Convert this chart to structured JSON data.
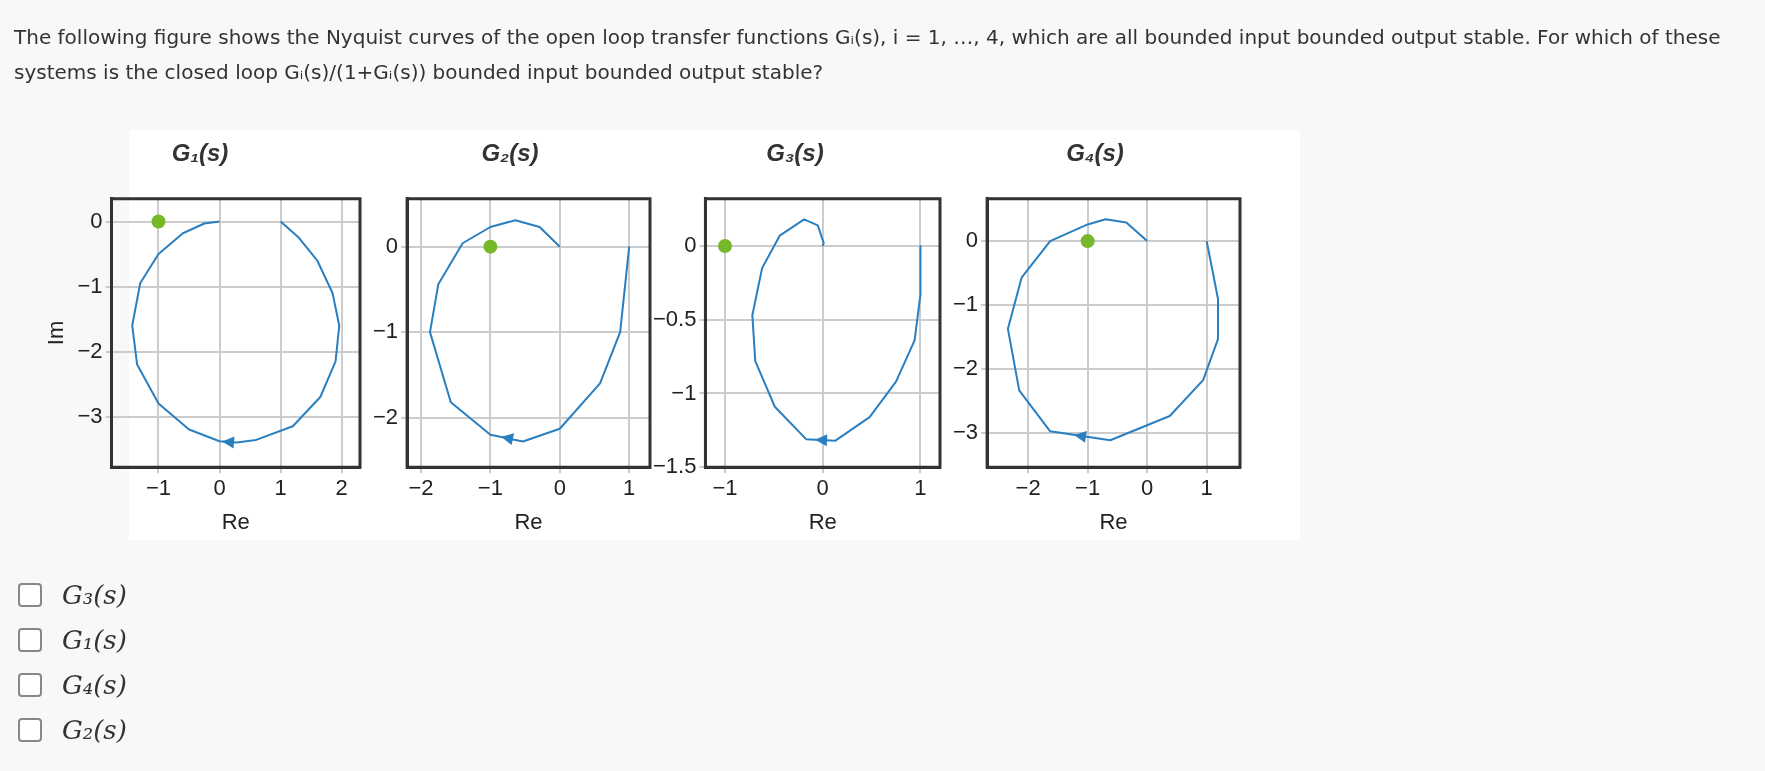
{
  "chart_data": [
    {
      "type": "other",
      "annotations": [
        "The following figure shows the Nyquist curves of the open loop transfer functions Gᵢ(s), i = 1, …, 4, which are all bounded input bounded output stable. For which of these systems is the closed loop Gᵢ(s)/(1+Gᵢ(s)) bounded input bounded output stable?"
      ]
    },
    {
      "type": "line",
      "title": "G₁(s)",
      "xlabel": "Re",
      "ylabel": "Im",
      "xlim": [
        -1.77,
        2.3
      ],
      "ylim": [
        -3.78,
        0.35
      ],
      "xticks": [
        -1,
        0,
        1,
        2
      ],
      "yticks": [
        -3,
        -2,
        -1,
        0
      ],
      "grid": true,
      "legend": false,
      "series": [
        {
          "color": "#2a7fc0",
          "x": [
            1,
            1.3,
            1.6,
            1.85,
            1.96,
            1.9,
            1.65,
            1.2,
            0.6,
            0.28,
            0,
            -0.5,
            -1,
            -1.35,
            -1.43,
            -1.3,
            -1,
            -0.6,
            -0.25,
            0
          ],
          "values": [
            0,
            -0.25,
            -0.6,
            -1.1,
            -1.6,
            -2.15,
            -2.7,
            -3.15,
            -3.36,
            -3.4,
            -3.38,
            -3.2,
            -2.8,
            -2.2,
            -1.6,
            -0.95,
            -0.5,
            -0.18,
            -0.03,
            0
          ]
        },
        {
          "type": "scatter",
          "marker": "circle",
          "color": "#77b82a",
          "x": [
            -1
          ],
          "values": [
            0
          ]
        }
      ]
    },
    {
      "type": "line",
      "title": "G₂(s)",
      "xlabel": "Re",
      "xlim": [
        -2.2,
        1.3
      ],
      "ylim": [
        -2.58,
        0.56
      ],
      "xticks": [
        -2,
        -1,
        0,
        1
      ],
      "yticks": [
        -2,
        -1,
        0
      ],
      "grid": true,
      "legend": false,
      "series": [
        {
          "color": "#2a7fc0",
          "x": [
            1,
            0.87,
            0.58,
            0,
            -0.53,
            -1,
            -1.57,
            -1.87,
            -1.75,
            -1.4,
            -1,
            -0.64,
            -0.29,
            0
          ],
          "values": [
            0,
            -1,
            -1.6,
            -2.13,
            -2.28,
            -2.2,
            -1.82,
            -1,
            -0.44,
            0.04,
            0.23,
            0.31,
            0.23,
            0
          ]
        },
        {
          "type": "scatter",
          "marker": "circle",
          "color": "#77b82a",
          "x": [
            -1
          ],
          "values": [
            0
          ]
        }
      ]
    },
    {
      "type": "line",
      "title": "G₃(s)",
      "xlabel": "Re",
      "xlim": [
        -1.2,
        1.2
      ],
      "ylim": [
        -1.5,
        0.32
      ],
      "xticks": [
        -1,
        0,
        1
      ],
      "yticks": [
        -1.5,
        -1,
        -0.5,
        0
      ],
      "grid": true,
      "legend": false,
      "series": [
        {
          "color": "#2a7fc0",
          "x": [
            1,
            1,
            0.94,
            0.75,
            0.48,
            0.13,
            -0.17,
            -0.49,
            -0.69,
            -0.72,
            -0.62,
            -0.44,
            -0.19,
            -0.05,
            0.01,
            0
          ],
          "values": [
            0,
            -0.33,
            -0.64,
            -0.92,
            -1.16,
            -1.32,
            -1.31,
            -1.09,
            -0.78,
            -0.47,
            -0.15,
            0.07,
            0.18,
            0.14,
            0.02,
            0
          ]
        },
        {
          "type": "scatter",
          "marker": "circle",
          "color": "#77b82a",
          "x": [
            -1
          ],
          "values": [
            0
          ]
        }
      ]
    },
    {
      "type": "line",
      "title": "G₄(s)",
      "xlabel": "Re",
      "xlim": [
        -2.69,
        1.56
      ],
      "ylim": [
        -3.53,
        0.66
      ],
      "xticks": [
        -2,
        -1,
        0,
        1
      ],
      "yticks": [
        -3,
        -2,
        -1,
        0
      ],
      "grid": true,
      "legend": false,
      "series": [
        {
          "color": "#2a7fc0",
          "x": [
            1,
            1.19,
            1.19,
            0.94,
            0.38,
            -0.62,
            -1.63,
            -2.15,
            -2.34,
            -2.11,
            -1.63,
            -1,
            -0.7,
            -0.35,
            0
          ],
          "values": [
            0,
            -0.9,
            -1.53,
            -2.17,
            -2.73,
            -3.11,
            -2.97,
            -2.33,
            -1.37,
            -0.57,
            0,
            0.26,
            0.34,
            0.29,
            0
          ]
        },
        {
          "type": "scatter",
          "marker": "circle",
          "color": "#77b82a",
          "x": [
            -1
          ],
          "values": [
            0
          ]
        }
      ]
    },
    {
      "type": "other",
      "annotations": [
        "G₃(s)",
        "G₁(s)",
        "G₄(s)",
        "G₂(s)"
      ]
    }
  ]
}
